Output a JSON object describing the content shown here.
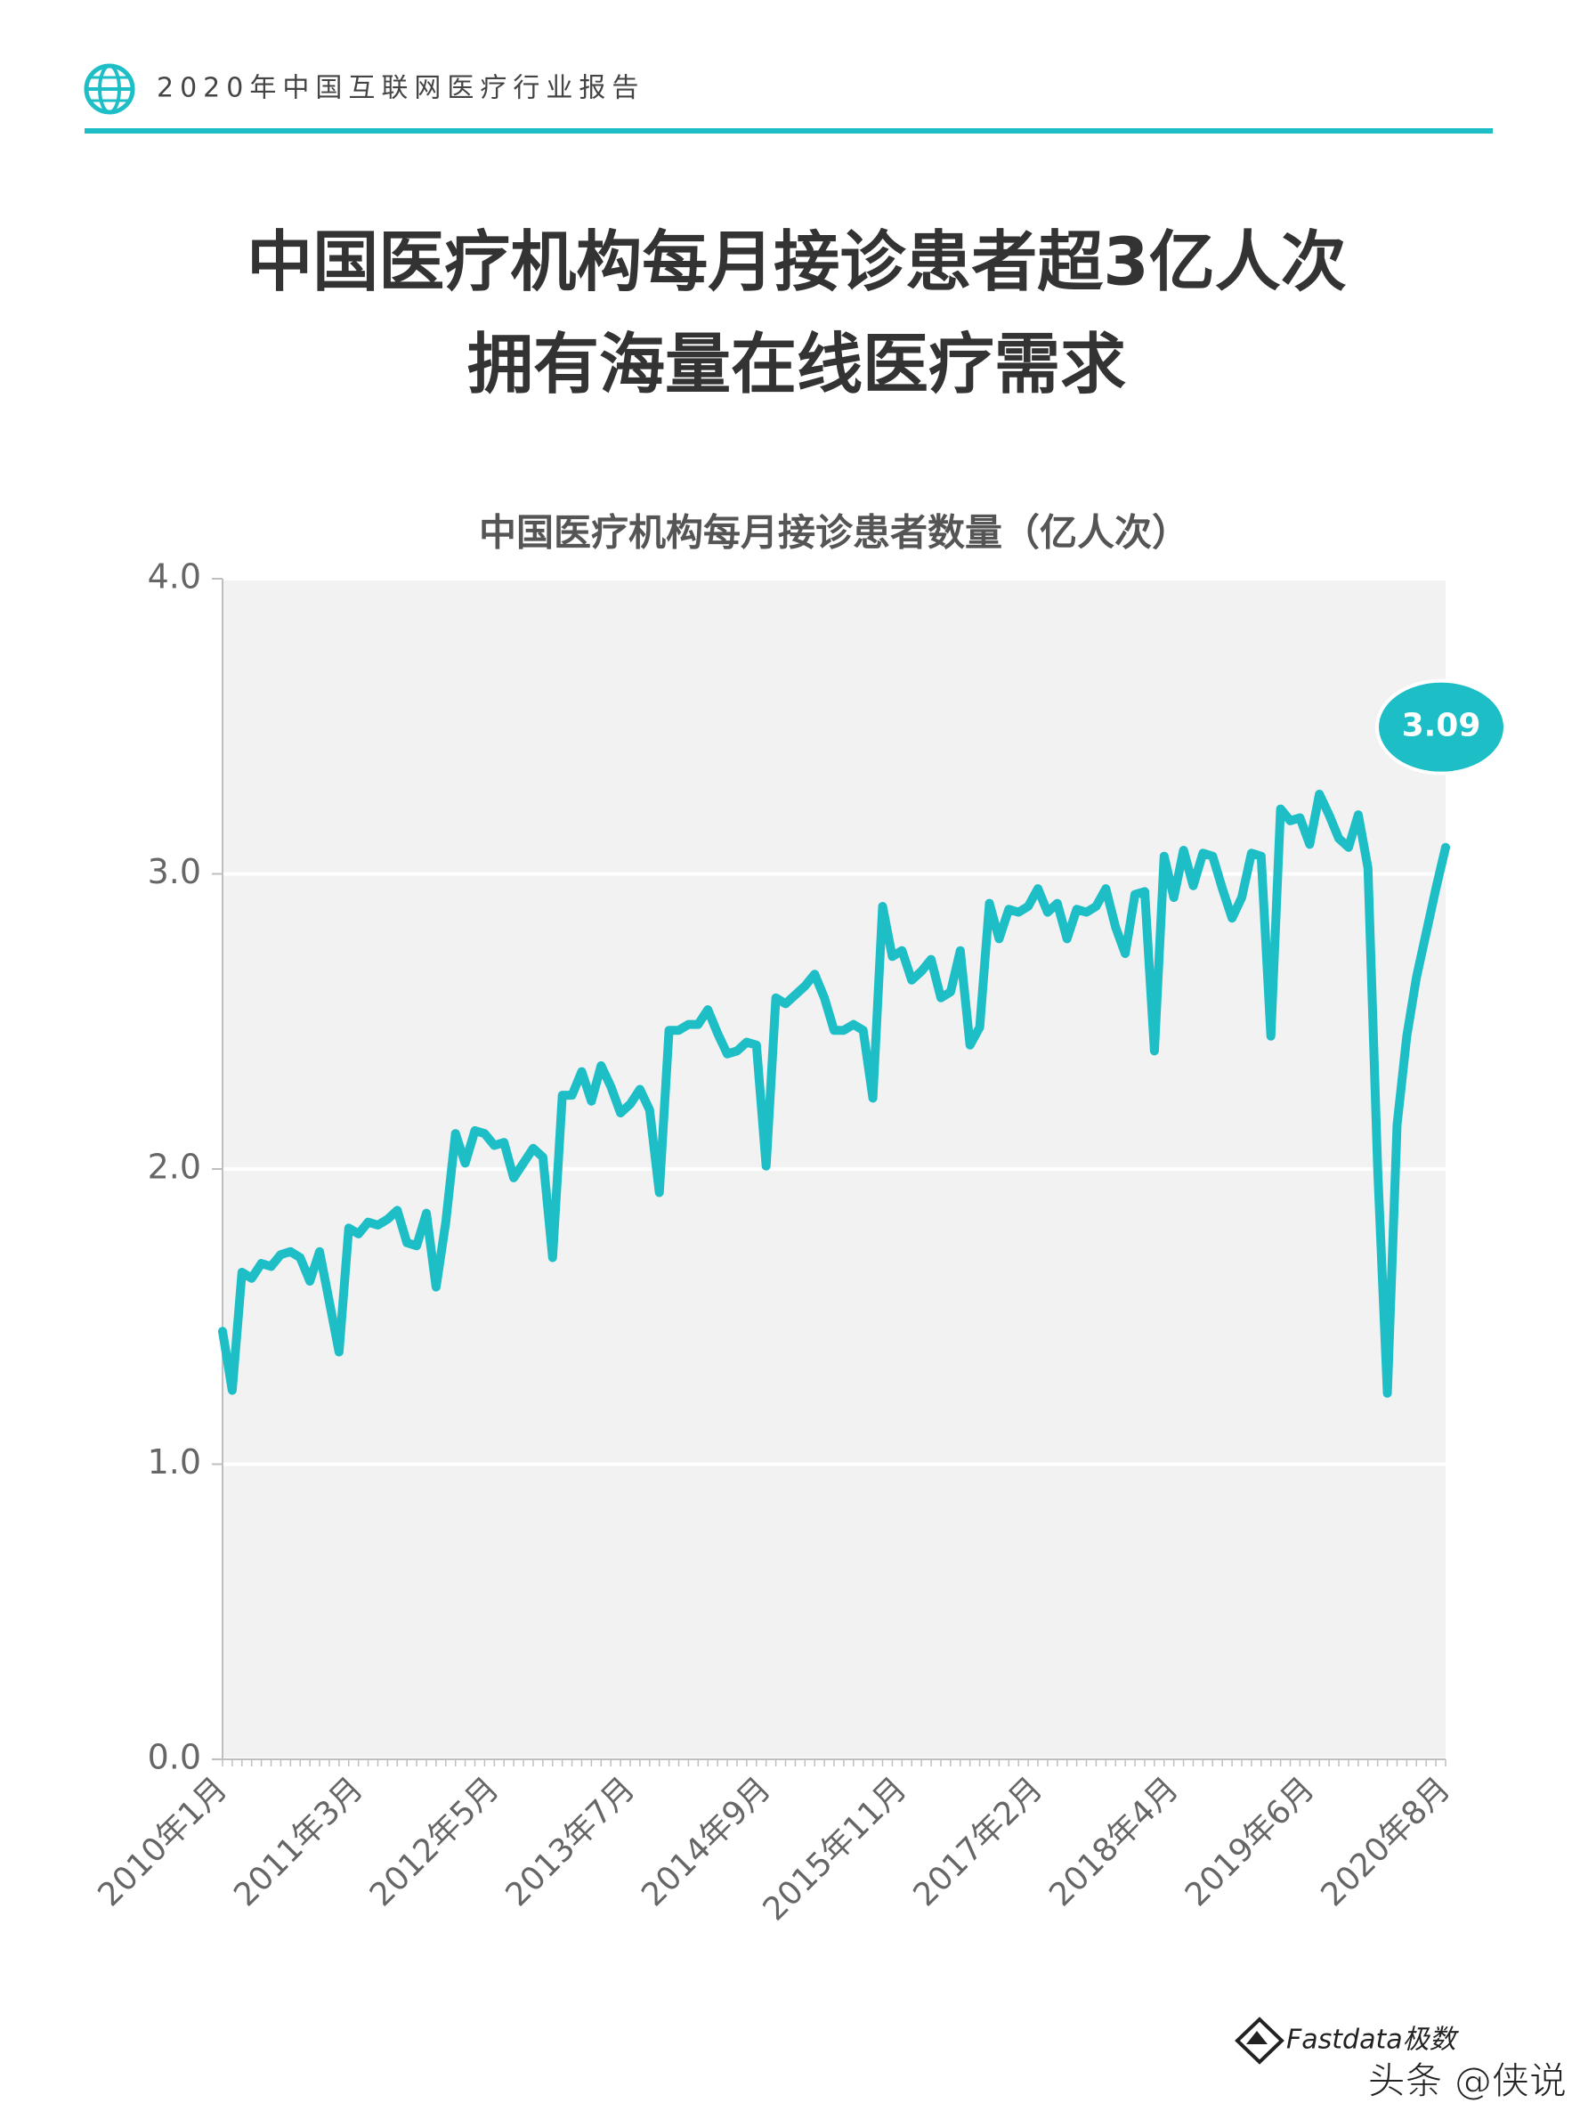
{
  "header": {
    "title": "2020年中国互联网医疗行业报告"
  },
  "headline": [
    "中国医疗机构每月接诊患者超3亿人次",
    "拥有海量在线医疗需求"
  ],
  "footer": {
    "logo": "Fastdata极数",
    "watermark": "头条 @侠说"
  },
  "chart_data": {
    "type": "line",
    "title": "中国医疗机构每月接诊患者数量（亿人次）",
    "categories": [
      "2010年1月",
      null,
      null,
      null,
      null,
      null,
      null,
      null,
      null,
      null,
      null,
      null,
      null,
      null,
      "2011年3月",
      null,
      null,
      null,
      null,
      null,
      null,
      null,
      null,
      null,
      null,
      null,
      null,
      null,
      "2012年5月",
      null,
      null,
      null,
      null,
      null,
      null,
      null,
      null,
      null,
      null,
      null,
      null,
      null,
      "2013年7月",
      null,
      null,
      null,
      null,
      null,
      null,
      null,
      null,
      null,
      null,
      null,
      null,
      null,
      "2014年9月",
      null,
      null,
      null,
      null,
      null,
      null,
      null,
      null,
      null,
      null,
      null,
      null,
      null,
      "2015年11月",
      null,
      null,
      null,
      null,
      null,
      null,
      null,
      null,
      null,
      null,
      null,
      null,
      null,
      "2017年2月",
      null,
      null,
      null,
      null,
      null,
      null,
      null,
      null,
      null,
      null,
      null,
      null,
      null,
      "2018年4月",
      null,
      null,
      null,
      null,
      null,
      null,
      null,
      null,
      null,
      null,
      null,
      null,
      null,
      "2019年6月",
      null,
      null,
      null,
      null,
      null,
      null,
      null,
      null,
      null,
      null,
      null,
      null,
      null,
      "2020年8月"
    ],
    "values": [
      1.45,
      1.25,
      1.65,
      1.63,
      1.68,
      1.67,
      1.71,
      1.72,
      1.7,
      1.62,
      1.72,
      1.55,
      1.38,
      1.8,
      1.78,
      1.82,
      1.81,
      1.83,
      1.86,
      1.75,
      1.74,
      1.85,
      1.6,
      1.82,
      2.12,
      2.02,
      2.13,
      2.12,
      2.08,
      2.09,
      1.97,
      2.02,
      2.07,
      2.04,
      1.7,
      2.25,
      2.25,
      2.33,
      2.23,
      2.35,
      2.28,
      2.19,
      2.22,
      2.27,
      2.2,
      1.92,
      2.47,
      2.47,
      2.49,
      2.49,
      2.54,
      2.46,
      2.39,
      2.4,
      2.43,
      2.42,
      2.01,
      2.58,
      2.56,
      2.59,
      2.62,
      2.66,
      2.58,
      2.47,
      2.47,
      2.49,
      2.47,
      2.24,
      2.89,
      2.72,
      2.74,
      2.64,
      2.67,
      2.71,
      2.58,
      2.6,
      2.74,
      2.42,
      2.48,
      2.9,
      2.78,
      2.88,
      2.87,
      2.89,
      2.95,
      2.87,
      2.9,
      2.78,
      2.88,
      2.87,
      2.89,
      2.95,
      2.82,
      2.73,
      2.93,
      2.94,
      2.4,
      3.06,
      2.92,
      3.08,
      2.96,
      3.07,
      3.06,
      2.95,
      2.85,
      2.92,
      3.07,
      3.06,
      2.45,
      3.22,
      3.18,
      3.19,
      3.1,
      3.27,
      3.2,
      3.12,
      3.09,
      3.2,
      3.02,
      2.0,
      1.24,
      2.15,
      2.45,
      2.65,
      2.8,
      2.95,
      3.09
    ],
    "color": "#1dbec6",
    "ylim": [
      0,
      4
    ],
    "yticks": [
      {
        "value": 0,
        "label": "0.0"
      },
      {
        "value": 1,
        "label": "1.0"
      },
      {
        "value": 2,
        "label": "2.0"
      },
      {
        "value": 3,
        "label": "3.0"
      },
      {
        "value": 4,
        "label": "4.0"
      }
    ],
    "grid": true,
    "labeled_point": 126
  }
}
